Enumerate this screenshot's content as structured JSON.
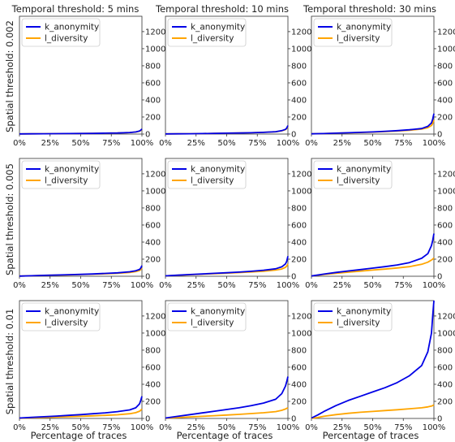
{
  "figure": {
    "col_titles": [
      "Temporal threshold: 5 mins",
      "Temporal threshold: 10 mins",
      "Temporal threshold: 30 mins"
    ],
    "row_labels": [
      "Spatial threshold: 0.002",
      "Spatial threshold: 0.005",
      "Spatial threshold: 0.01"
    ],
    "xlabel": "Percentage of traces",
    "x_ticks": [
      "0%",
      "25%",
      "50%",
      "75%",
      "100%"
    ],
    "y_ticks": [
      "0",
      "200",
      "400",
      "600",
      "800",
      "1000",
      "1200"
    ],
    "legend": [
      "k_anonymity",
      "l_diversity"
    ],
    "colors": {
      "k_anonymity": "#0000e6",
      "l_diversity": "#ffa500",
      "axes": "#333333"
    }
  },
  "chart_data": [
    {
      "type": "line",
      "title": "Temporal threshold: 5 mins",
      "ylabel": "Spatial threshold: 0.002",
      "xlim": [
        0,
        100
      ],
      "ylim": [
        0,
        1380
      ],
      "legend": "upper-left",
      "x": [
        0,
        10,
        20,
        30,
        40,
        50,
        60,
        70,
        80,
        90,
        95,
        98,
        99,
        100
      ],
      "series": [
        {
          "name": "k_anonymity",
          "values": [
            2,
            3,
            4,
            5,
            6,
            7,
            8,
            10,
            12,
            18,
            25,
            35,
            45,
            60
          ]
        },
        {
          "name": "l_diversity",
          "values": [
            2,
            3,
            4,
            5,
            6,
            7,
            8,
            10,
            12,
            18,
            24,
            33,
            42,
            55
          ]
        }
      ]
    },
    {
      "type": "line",
      "title": "Temporal threshold: 10 mins",
      "ylabel": "",
      "xlim": [
        0,
        100
      ],
      "ylim": [
        0,
        1380
      ],
      "legend": "upper-left",
      "x": [
        0,
        10,
        20,
        30,
        40,
        50,
        60,
        70,
        80,
        90,
        95,
        98,
        99,
        100
      ],
      "series": [
        {
          "name": "k_anonymity",
          "values": [
            2,
            3,
            4,
            6,
            8,
            10,
            12,
            15,
            20,
            28,
            40,
            55,
            70,
            100
          ]
        },
        {
          "name": "l_diversity",
          "values": [
            2,
            3,
            4,
            6,
            8,
            10,
            12,
            15,
            20,
            27,
            38,
            52,
            65,
            90
          ]
        }
      ]
    },
    {
      "type": "line",
      "title": "Temporal threshold: 30 mins",
      "ylabel": "",
      "xlim": [
        0,
        100
      ],
      "ylim": [
        0,
        1380
      ],
      "legend": "upper-left",
      "x": [
        0,
        10,
        20,
        30,
        40,
        50,
        60,
        70,
        80,
        90,
        95,
        98,
        99,
        100
      ],
      "series": [
        {
          "name": "k_anonymity",
          "values": [
            3,
            6,
            10,
            15,
            20,
            25,
            32,
            40,
            50,
            65,
            90,
            130,
            175,
            240
          ]
        },
        {
          "name": "l_diversity",
          "values": [
            3,
            6,
            10,
            14,
            18,
            23,
            29,
            36,
            45,
            58,
            75,
            100,
            125,
            165
          ]
        }
      ]
    },
    {
      "type": "line",
      "title": "",
      "ylabel": "Spatial threshold: 0.005",
      "xlim": [
        0,
        100
      ],
      "ylim": [
        0,
        1380
      ],
      "legend": "upper-left",
      "x": [
        0,
        10,
        20,
        30,
        40,
        50,
        60,
        70,
        80,
        90,
        95,
        98,
        99,
        100
      ],
      "series": [
        {
          "name": "k_anonymity",
          "values": [
            2,
            6,
            10,
            14,
            18,
            22,
            27,
            33,
            40,
            52,
            65,
            80,
            95,
            125
          ]
        },
        {
          "name": "l_diversity",
          "values": [
            2,
            6,
            10,
            13,
            16,
            20,
            24,
            29,
            35,
            45,
            55,
            68,
            78,
            95
          ]
        }
      ]
    },
    {
      "type": "line",
      "title": "",
      "ylabel": "",
      "xlim": [
        0,
        100
      ],
      "ylim": [
        0,
        1380
      ],
      "legend": "upper-left",
      "x": [
        0,
        10,
        20,
        30,
        40,
        50,
        60,
        70,
        80,
        90,
        95,
        98,
        99,
        100
      ],
      "series": [
        {
          "name": "k_anonymity",
          "values": [
            5,
            12,
            20,
            27,
            34,
            41,
            49,
            58,
            70,
            88,
            110,
            145,
            175,
            235
          ]
        },
        {
          "name": "l_diversity",
          "values": [
            5,
            11,
            18,
            24,
            30,
            36,
            43,
            50,
            59,
            72,
            85,
            105,
            120,
            145
          ]
        }
      ]
    },
    {
      "type": "line",
      "title": "",
      "ylabel": "",
      "xlim": [
        0,
        100
      ],
      "ylim": [
        0,
        1380
      ],
      "legend": "upper-left",
      "x": [
        0,
        10,
        20,
        30,
        40,
        50,
        60,
        70,
        80,
        90,
        95,
        98,
        99,
        100
      ],
      "series": [
        {
          "name": "k_anonymity",
          "values": [
            3,
            25,
            45,
            62,
            78,
            95,
            112,
            132,
            160,
            210,
            265,
            360,
            420,
            500
          ]
        },
        {
          "name": "l_diversity",
          "values": [
            3,
            20,
            35,
            48,
            60,
            72,
            84,
            97,
            112,
            140,
            165,
            190,
            200,
            215
          ]
        }
      ]
    },
    {
      "type": "line",
      "title": "",
      "ylabel": "Spatial threshold: 0.01",
      "xlim": [
        0,
        100
      ],
      "ylim": [
        0,
        1380
      ],
      "legend": "upper-left",
      "x": [
        0,
        10,
        20,
        30,
        40,
        50,
        60,
        70,
        80,
        90,
        95,
        98,
        99,
        100
      ],
      "series": [
        {
          "name": "k_anonymity",
          "values": [
            5,
            12,
            20,
            28,
            36,
            45,
            55,
            66,
            80,
            100,
            125,
            170,
            210,
            260
          ]
        },
        {
          "name": "l_diversity",
          "values": [
            3,
            8,
            12,
            16,
            20,
            25,
            30,
            36,
            43,
            55,
            68,
            85,
            95,
            110
          ]
        }
      ]
    },
    {
      "type": "line",
      "title": "",
      "ylabel": "",
      "xlim": [
        0,
        100
      ],
      "ylim": [
        0,
        1380
      ],
      "legend": "upper-left",
      "x": [
        0,
        10,
        20,
        30,
        40,
        50,
        60,
        70,
        80,
        90,
        95,
        98,
        99,
        100
      ],
      "series": [
        {
          "name": "k_anonymity",
          "values": [
            5,
            25,
            45,
            65,
            85,
            105,
            125,
            150,
            180,
            225,
            290,
            380,
            430,
            490
          ]
        },
        {
          "name": "l_diversity",
          "values": [
            3,
            10,
            18,
            25,
            32,
            40,
            48,
            57,
            67,
            80,
            95,
            110,
            118,
            125
          ]
        }
      ]
    },
    {
      "type": "line",
      "title": "",
      "ylabel": "",
      "xlim": [
        0,
        100
      ],
      "ylim": [
        0,
        1380
      ],
      "legend": "upper-left",
      "x": [
        0,
        5,
        10,
        20,
        30,
        40,
        50,
        60,
        70,
        80,
        90,
        95,
        98,
        99,
        100
      ],
      "series": [
        {
          "name": "k_anonymity",
          "values": [
            5,
            40,
            80,
            150,
            210,
            260,
            310,
            360,
            420,
            500,
            620,
            780,
            1000,
            1200,
            1400
          ]
        },
        {
          "name": "l_diversity",
          "values": [
            3,
            10,
            25,
            45,
            60,
            72,
            82,
            92,
            102,
            113,
            125,
            135,
            145,
            150,
            160
          ]
        }
      ]
    }
  ]
}
